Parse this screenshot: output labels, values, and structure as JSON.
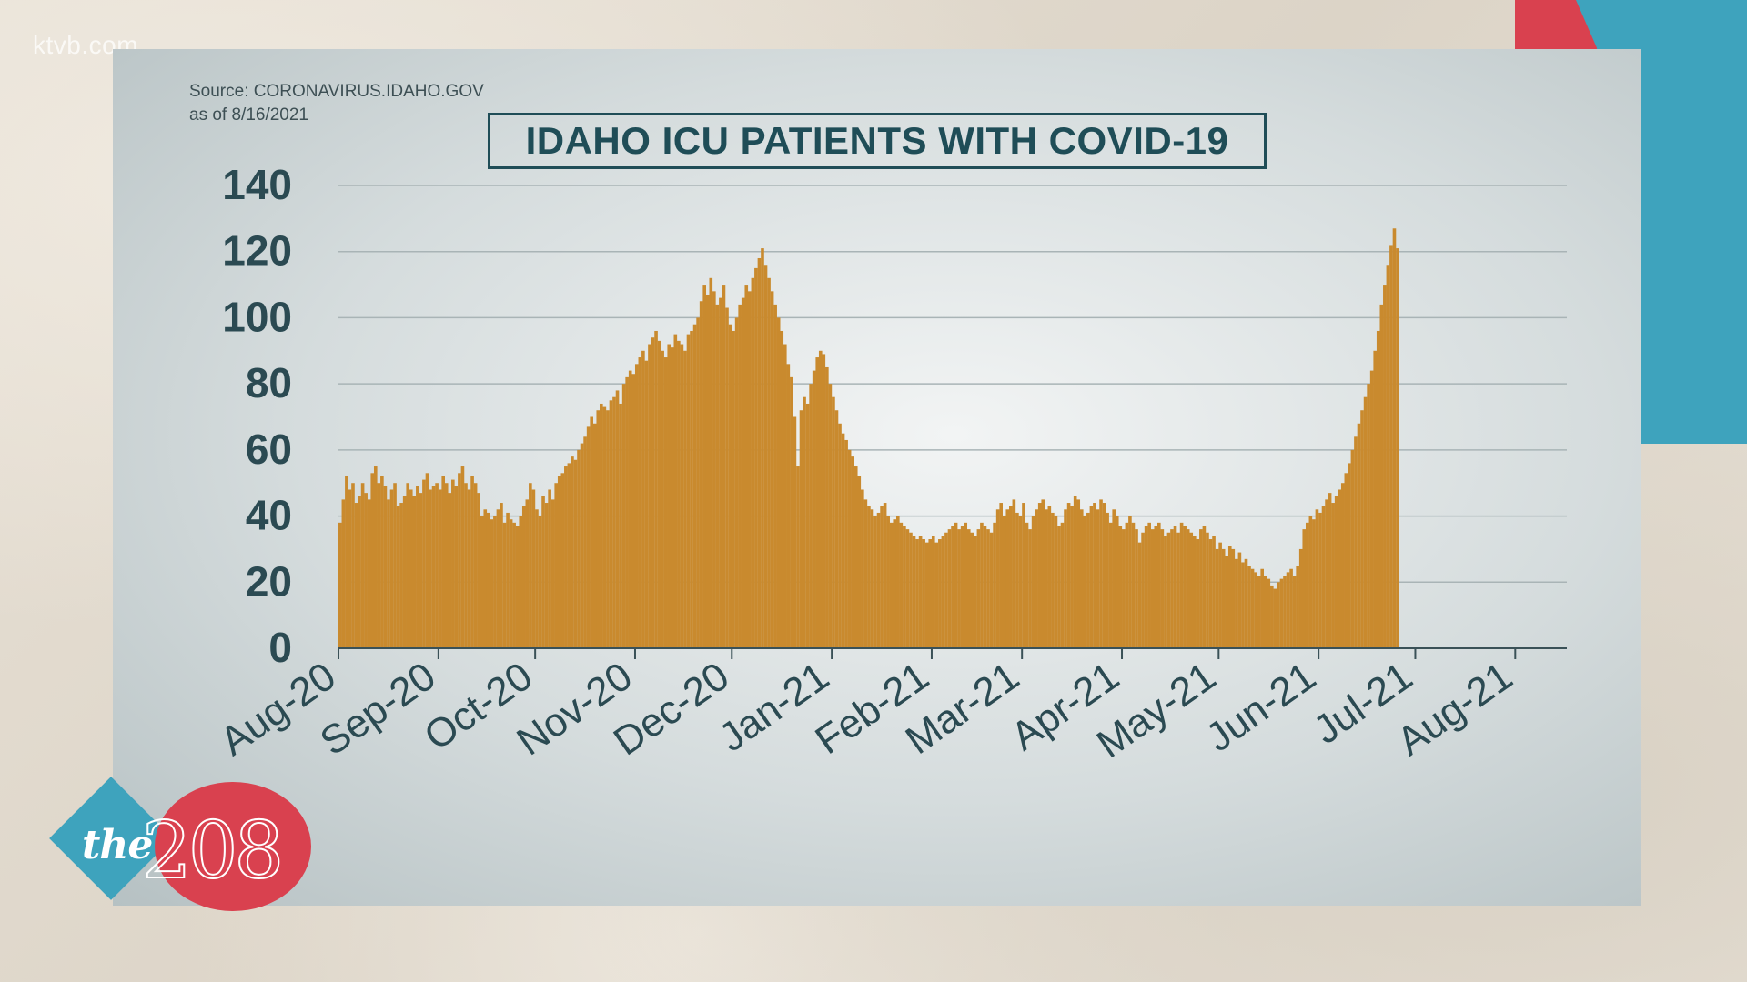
{
  "watermark": "ktvb.com",
  "source": {
    "line1": "Source: CORONAVIRUS.IDAHO.GOV",
    "line2": "as of 8/16/2021"
  },
  "logo": {
    "prefix": "the",
    "number": "208"
  },
  "colors": {
    "bar": "#c98a2e",
    "title": "#1f4d57",
    "axis_text": "#2b4a52",
    "accent_red": "#d9414f",
    "accent_blue": "#3ea3bd"
  },
  "chart_data": {
    "type": "bar",
    "title": "IDAHO ICU PATIENTS WITH COVID-19",
    "xlabel": "",
    "ylabel": "",
    "ylim": [
      0,
      140
    ],
    "yticks": [
      "0",
      "20",
      "40",
      "60",
      "80",
      "100",
      "120",
      "140"
    ],
    "grid": true,
    "xticks": [
      "Aug-20",
      "Sep-20",
      "Oct-20",
      "Nov-20",
      "Dec-20",
      "Jan-21",
      "Feb-21",
      "Mar-21",
      "Apr-21",
      "May-21",
      "Jun-21",
      "Jul-21",
      "Aug-21"
    ],
    "x_start": "2020-08-01",
    "x_end": "2021-08-16",
    "series": [
      {
        "values": [
          38,
          45,
          52,
          48,
          50,
          44,
          46,
          50,
          47,
          45,
          53,
          55,
          50,
          52,
          49,
          45,
          48,
          50,
          43,
          44,
          46,
          50,
          48,
          46,
          49,
          47,
          51,
          53,
          48,
          49,
          50,
          48,
          52,
          50,
          47,
          51,
          49,
          53,
          55,
          50,
          48,
          52,
          50,
          47,
          40,
          42,
          41,
          39,
          40,
          42,
          44,
          38,
          41,
          39,
          38,
          37,
          40,
          43,
          45,
          50,
          48,
          42,
          40,
          46,
          44,
          48,
          45,
          50,
          52,
          53,
          55,
          56,
          58,
          57,
          60,
          62,
          64,
          67,
          70,
          68,
          72,
          74,
          73,
          72,
          75,
          76,
          78,
          74,
          80,
          82,
          84,
          83,
          86,
          88,
          90,
          87,
          92,
          94,
          96,
          93,
          90,
          88,
          92,
          91,
          95,
          93,
          92,
          90,
          95,
          96,
          98,
          100,
          105,
          110,
          107,
          112,
          108,
          104,
          106,
          110,
          103,
          98,
          96,
          100,
          104,
          106,
          110,
          108,
          112,
          115,
          118,
          121,
          116,
          112,
          108,
          104,
          100,
          96,
          92,
          86,
          82,
          70,
          55,
          72,
          76,
          74,
          80,
          84,
          88,
          90,
          89,
          85,
          80,
          76,
          72,
          68,
          65,
          63,
          60,
          58,
          55,
          52,
          48,
          45,
          43,
          42,
          40,
          41,
          43,
          44,
          40,
          38,
          39,
          40,
          38,
          37,
          36,
          35,
          34,
          33,
          34,
          33,
          32,
          33,
          34,
          32,
          33,
          34,
          35,
          36,
          37,
          38,
          36,
          37,
          38,
          36,
          35,
          34,
          36,
          38,
          37,
          36,
          35,
          38,
          42,
          44,
          40,
          42,
          43,
          45,
          41,
          40,
          44,
          38,
          36,
          40,
          42,
          44,
          45,
          42,
          43,
          41,
          40,
          37,
          38,
          42,
          44,
          43,
          46,
          45,
          42,
          40,
          41,
          43,
          44,
          42,
          45,
          44,
          41,
          38,
          42,
          40,
          37,
          36,
          38,
          40,
          38,
          36,
          32,
          35,
          37,
          38,
          36,
          37,
          38,
          36,
          34,
          35,
          36,
          37,
          35,
          38,
          37,
          36,
          35,
          34,
          33,
          36,
          37,
          35,
          33,
          34,
          30,
          32,
          30,
          28,
          31,
          30,
          27,
          29,
          26,
          27,
          25,
          24,
          23,
          22,
          24,
          22,
          21,
          19,
          18,
          20,
          21,
          22,
          23,
          24,
          22,
          25,
          30,
          36,
          38,
          40,
          39,
          42,
          41,
          43,
          45,
          47,
          44,
          46,
          48,
          50,
          53,
          56,
          60,
          64,
          68,
          72,
          76,
          80,
          84,
          90,
          96,
          104,
          110,
          116,
          122,
          127,
          121
        ]
      }
    ]
  }
}
